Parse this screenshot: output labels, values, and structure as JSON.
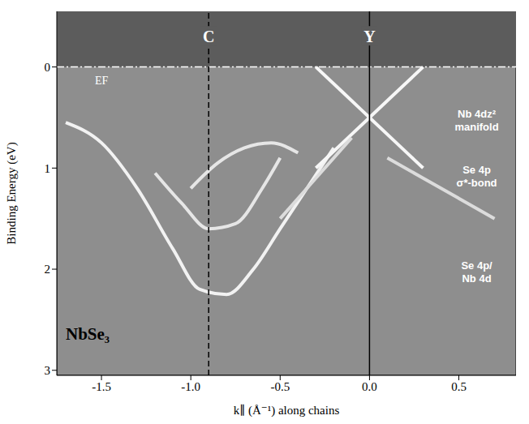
{
  "chart_data": {
    "type": "line",
    "x_label": "k∥ (Å⁻¹) along chains",
    "y_label": "Binding Energy (eV)",
    "xlim": [
      -1.75,
      0.82
    ],
    "ylim": [
      -0.55,
      3.05
    ],
    "xticks": [
      {
        "value": -1.5,
        "label": "-1.5"
      },
      {
        "value": -1.0,
        "label": "-1.0"
      },
      {
        "value": -0.5,
        "label": "-0.5"
      },
      {
        "value": 0,
        "label": "0.0"
      },
      {
        "value": 0.5,
        "label": "0.5"
      }
    ],
    "yticks": [
      0,
      1,
      2,
      3
    ],
    "series": [
      {
        "color": "#f2f2f2",
        "x": [
          -1.7,
          -1.5,
          -1.3,
          -1.1,
          -0.95,
          -0.8,
          -0.65,
          -0.5,
          -0.35,
          -0.2
        ],
        "values": [
          0.55,
          0.75,
          1.2,
          1.8,
          2.2,
          2.25,
          2.0,
          1.6,
          1.2,
          0.8
        ]
      },
      {
        "color": "#e6e6e6",
        "x": [
          -1.2,
          -1.05,
          -0.9,
          -0.75,
          -0.6,
          -0.5
        ],
        "values": [
          1.05,
          1.35,
          1.6,
          1.55,
          1.2,
          0.9
        ]
      },
      {
        "color": "#e6e6e6",
        "x": [
          -1.0,
          -0.85,
          -0.7,
          -0.55,
          -0.4
        ],
        "values": [
          1.2,
          0.95,
          0.8,
          0.75,
          0.85
        ]
      },
      {
        "color": "#f7f7f7",
        "x": [
          -0.3,
          -0.15,
          0,
          0.15,
          0.3
        ],
        "values": [
          0.0,
          0.25,
          0.5,
          0.75,
          1.0
        ]
      },
      {
        "color": "#f7f7f7",
        "x": [
          -0.3,
          -0.15,
          0,
          0.15,
          0.3
        ],
        "values": [
          1.0,
          0.75,
          0.5,
          0.25,
          0.0
        ]
      },
      {
        "color": "#dcdcdc",
        "x": [
          0.1,
          0.3,
          0.5,
          0.7
        ],
        "values": [
          0.9,
          1.1,
          1.3,
          1.5
        ]
      },
      {
        "color": "#dcdcdc",
        "x": [
          -0.1,
          -0.3,
          -0.5
        ],
        "values": [
          0.7,
          1.1,
          1.5
        ]
      }
    ],
    "reference_lines": [
      {
        "label": "C",
        "x": -0.9,
        "line_style": "dashed"
      },
      {
        "label": "Y",
        "x": 0,
        "line_style": "solid"
      },
      {
        "label": "EF",
        "y": 0,
        "line_style": "dashdot"
      }
    ],
    "annotations": [
      {
        "text": [
          "Nb 4dz²",
          "manifold"
        ]
      },
      {
        "text": [
          "Se 4p",
          "σ*-bond"
        ]
      },
      {
        "text": [
          "Se 4p/",
          "Nb 4d"
        ]
      }
    ],
    "sample_label": "NbSe₃"
  }
}
